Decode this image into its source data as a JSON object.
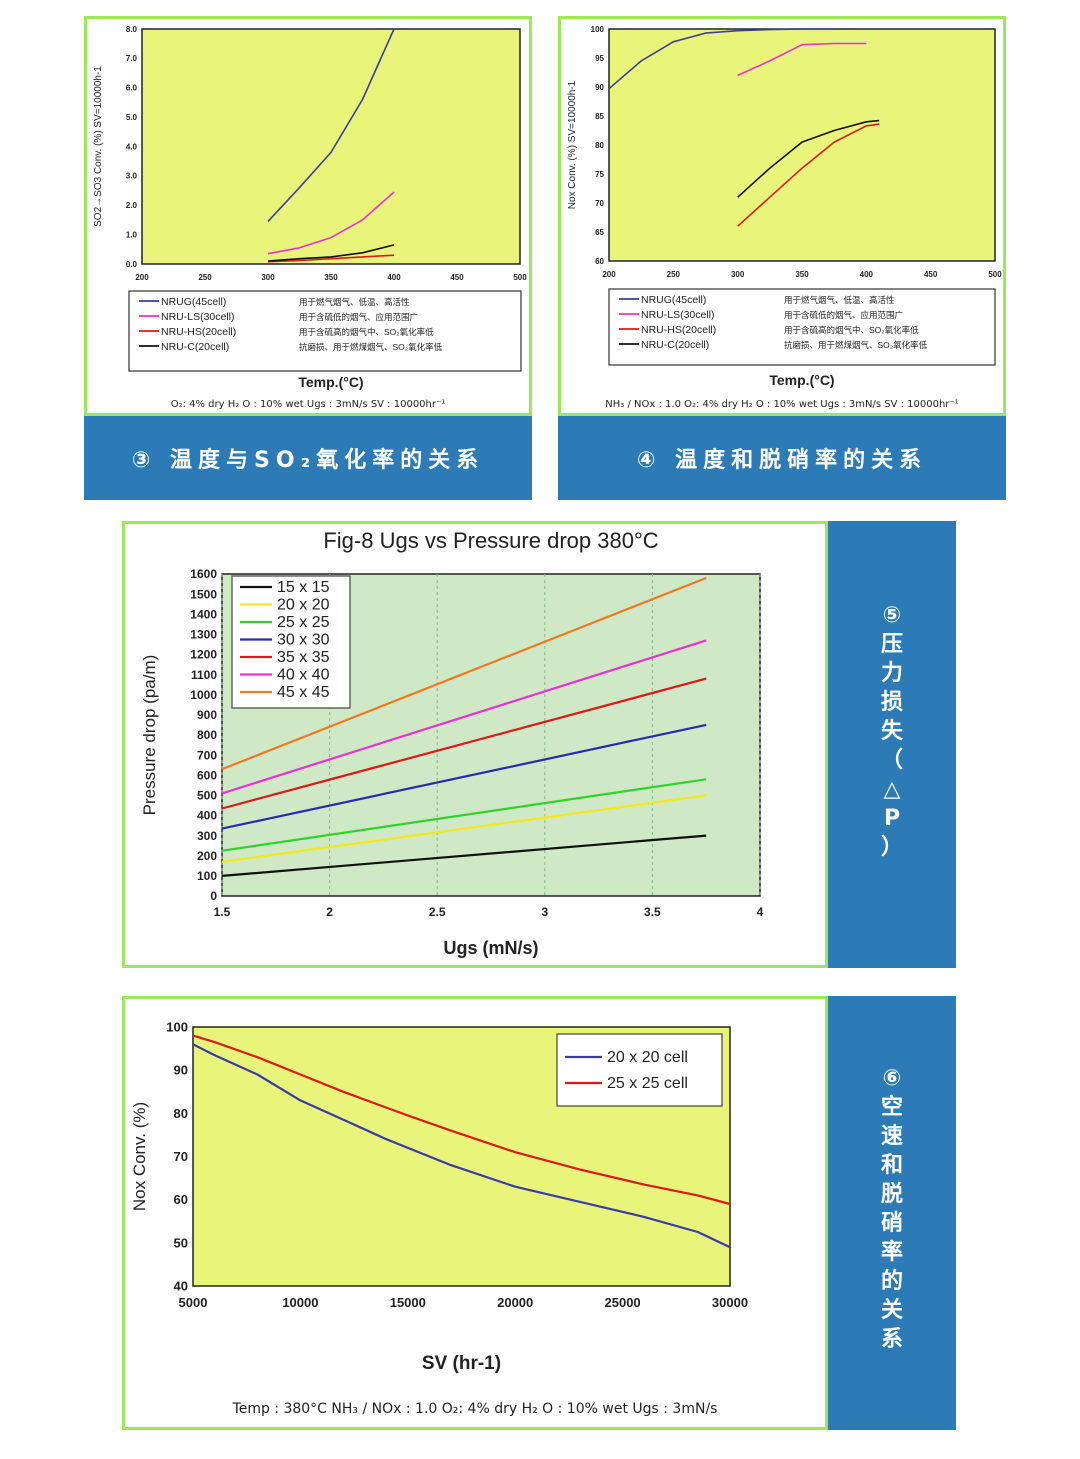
{
  "colors": {
    "panel_border": "#9be85a",
    "plot_bg": "#e8f57a",
    "banner_bg": "#2c7bb6",
    "grid_bg": "#cfe8c6"
  },
  "panels": {
    "p3": {
      "banner": "③ 温度与SO₂氧化率的关系",
      "note": "O₂: 4% dry H₂ O : 10% wet Ugs : 3mN/s SV : 10000hr⁻¹"
    },
    "p4": {
      "banner": "④ 温度和脱硝率的关系",
      "note": "NH₃ / NOx : 1.0  O₂: 4% dry H₂ O : 10% wet Ugs : 3mN/s SV : 10000hr⁻¹"
    },
    "p5": {
      "banner": "⑤压力损失（△P）"
    },
    "p6": {
      "banner": "⑥空速和脱硝率的关系",
      "note": "Temp : 380°C  NH₃ / NOx : 1.0  O₂: 4% dry H₂ O : 10% wet Ugs : 3mN/s"
    }
  },
  "chart_data": [
    {
      "id": "so2",
      "type": "line",
      "title": "",
      "xlabel": "Temp.(°C)",
      "ylabel": "SO2→SO3 Conv. (%) SV=10000h-1",
      "xlim": [
        200,
        500
      ],
      "ylim": [
        0,
        8
      ],
      "xticks": [
        200,
        250,
        300,
        350,
        400,
        450,
        500
      ],
      "yticks": [
        0.0,
        1.0,
        2.0,
        3.0,
        4.0,
        5.0,
        6.0,
        7.0,
        8.0
      ],
      "ytick_labels": [
        "0.0",
        "1.0",
        "2.0",
        "3.0",
        "4.0",
        "5.0",
        "6.0",
        "7.0",
        "8.0"
      ],
      "legend_position": "below",
      "series": [
        {
          "name": "NRUG(45cell)",
          "desc": "用于燃气烟气、低温、高活性",
          "color": "#3b3f9a",
          "x": [
            300,
            325,
            350,
            375,
            400
          ],
          "y": [
            1.45,
            2.6,
            3.8,
            5.6,
            8.0
          ]
        },
        {
          "name": "NRU-LS(30cell)",
          "desc": "用于含硫低的烟气、应用范围广",
          "color": "#ee2fd6",
          "x": [
            300,
            325,
            350,
            375,
            400
          ],
          "y": [
            0.35,
            0.55,
            0.9,
            1.5,
            2.45
          ]
        },
        {
          "name": "NRU-HS(20cell)",
          "desc": "用于含硫高的烟气中、SO₂氧化率低",
          "color": "#e01818",
          "x": [
            300,
            325,
            350,
            375,
            400
          ],
          "y": [
            0.08,
            0.12,
            0.18,
            0.24,
            0.3
          ]
        },
        {
          "name": "NRU-C(20cell)",
          "desc": "抗磨损、用于燃煤烟气、SO₂氧化率低",
          "color": "#111111",
          "x": [
            300,
            325,
            350,
            375,
            400
          ],
          "y": [
            0.1,
            0.18,
            0.24,
            0.38,
            0.65
          ]
        }
      ]
    },
    {
      "id": "nox_temp",
      "type": "line",
      "title": "",
      "xlabel": "Temp.(°C)",
      "ylabel": "Nox Conv. (%) SV=10000h-1",
      "xlim": [
        200,
        500
      ],
      "ylim": [
        60,
        100
      ],
      "xticks": [
        200,
        250,
        300,
        350,
        400,
        450,
        500
      ],
      "yticks": [
        60,
        65,
        70,
        75,
        80,
        85,
        90,
        95,
        100
      ],
      "ytick_labels": [
        "60",
        "65",
        "70",
        "75",
        "80",
        "85",
        "90",
        "95",
        "100"
      ],
      "legend_position": "below",
      "series": [
        {
          "name": "NRUG(45cell)",
          "desc": "用于燃气烟气、低温、高活性",
          "color": "#3b3f9a",
          "x": [
            200,
            225,
            250,
            275,
            300,
            325,
            350,
            375
          ],
          "y": [
            89.7,
            94.5,
            97.8,
            99.3,
            99.7,
            99.9,
            100,
            100
          ]
        },
        {
          "name": "NRU-LS(30cell)",
          "desc": "用于含硫低的烟气、应用范围广",
          "color": "#ee2fd6",
          "x": [
            300,
            325,
            350,
            375,
            400
          ],
          "y": [
            92,
            94.5,
            97.3,
            97.5,
            97.5
          ]
        },
        {
          "name": "NRU-HS(20cell)",
          "desc": "用于含硫高的烟气中、SO₂氧化率低",
          "color": "#e01818",
          "x": [
            300,
            325,
            350,
            375,
            400,
            410
          ],
          "y": [
            66,
            71,
            76,
            80.5,
            83.3,
            83.6
          ]
        },
        {
          "name": "NRU-C(20cell)",
          "desc": "抗磨损、用于燃煤烟气、SO₂氧化率低",
          "color": "#111111",
          "x": [
            300,
            325,
            350,
            375,
            400,
            410
          ],
          "y": [
            71,
            76,
            80.5,
            82.5,
            84,
            84.2
          ]
        }
      ]
    },
    {
      "id": "pressure",
      "type": "line",
      "title": "Fig-8 Ugs vs Pressure drop 380°C",
      "xlabel": "Ugs (mN/s)",
      "ylabel": "Pressure drop (pa/m)",
      "xlim": [
        1.5,
        4.0
      ],
      "ylim": [
        0,
        1600
      ],
      "xticks": [
        1.5,
        2.0,
        2.5,
        3.0,
        3.5,
        4.0
      ],
      "yticks": [
        0,
        100,
        200,
        300,
        400,
        500,
        600,
        700,
        800,
        900,
        1000,
        1100,
        1200,
        1300,
        1400,
        1500,
        1600
      ],
      "ytick_labels": [
        "0",
        "100",
        "200",
        "300",
        "400",
        "500",
        "600",
        "700",
        "800",
        "900",
        "1000",
        "1100",
        "1200",
        "1300",
        "1400",
        "1500",
        "1600"
      ],
      "legend_position": "top-left",
      "series": [
        {
          "name": "15 x 15",
          "color": "#111111",
          "x": [
            1.5,
            3.75
          ],
          "y": [
            100,
            300
          ]
        },
        {
          "name": "20 x 20",
          "color": "#f2ea16",
          "x": [
            1.5,
            3.75
          ],
          "y": [
            170,
            500
          ]
        },
        {
          "name": "25 x 25",
          "color": "#2fd42a",
          "x": [
            1.5,
            3.75
          ],
          "y": [
            225,
            580
          ]
        },
        {
          "name": "30 x 30",
          "color": "#2a2ab0",
          "x": [
            1.5,
            3.75
          ],
          "y": [
            335,
            850
          ]
        },
        {
          "name": "35 x 35",
          "color": "#e01818",
          "x": [
            1.5,
            3.75
          ],
          "y": [
            435,
            1080
          ]
        },
        {
          "name": "40 x 40",
          "color": "#ee2fd6",
          "x": [
            1.5,
            3.75
          ],
          "y": [
            510,
            1270
          ]
        },
        {
          "name": "45 x 45",
          "color": "#f07a20",
          "x": [
            1.5,
            3.75
          ],
          "y": [
            630,
            1580
          ]
        }
      ]
    },
    {
      "id": "nox_sv",
      "type": "line",
      "title": "",
      "xlabel": "SV (hr-1)",
      "ylabel": "Nox Conv. (%)",
      "xlim": [
        5000,
        30000
      ],
      "ylim": [
        40,
        100
      ],
      "xticks": [
        5000,
        10000,
        15000,
        20000,
        25000,
        30000
      ],
      "yticks": [
        40,
        50,
        60,
        70,
        80,
        90,
        100
      ],
      "ytick_labels": [
        "40",
        "50",
        "60",
        "70",
        "80",
        "90",
        "100"
      ],
      "legend_position": "top-right",
      "series": [
        {
          "name": "20 x 20 cell",
          "color": "#3a3aa8",
          "x": [
            5000,
            6000,
            8000,
            10000,
            12000,
            14000,
            17000,
            20000,
            23000,
            26000,
            28500,
            30000
          ],
          "y": [
            96,
            93.5,
            89,
            83,
            78.5,
            74,
            68,
            63,
            59.5,
            56,
            52.5,
            49
          ]
        },
        {
          "name": "25 x 25 cell",
          "color": "#e01818",
          "x": [
            5000,
            6000,
            8000,
            10000,
            12000,
            15000,
            17000,
            20000,
            23000,
            26000,
            28500,
            30000
          ],
          "y": [
            98,
            96.5,
            93,
            89,
            85,
            79.5,
            76,
            71,
            67,
            63.5,
            61,
            59
          ]
        }
      ]
    }
  ]
}
